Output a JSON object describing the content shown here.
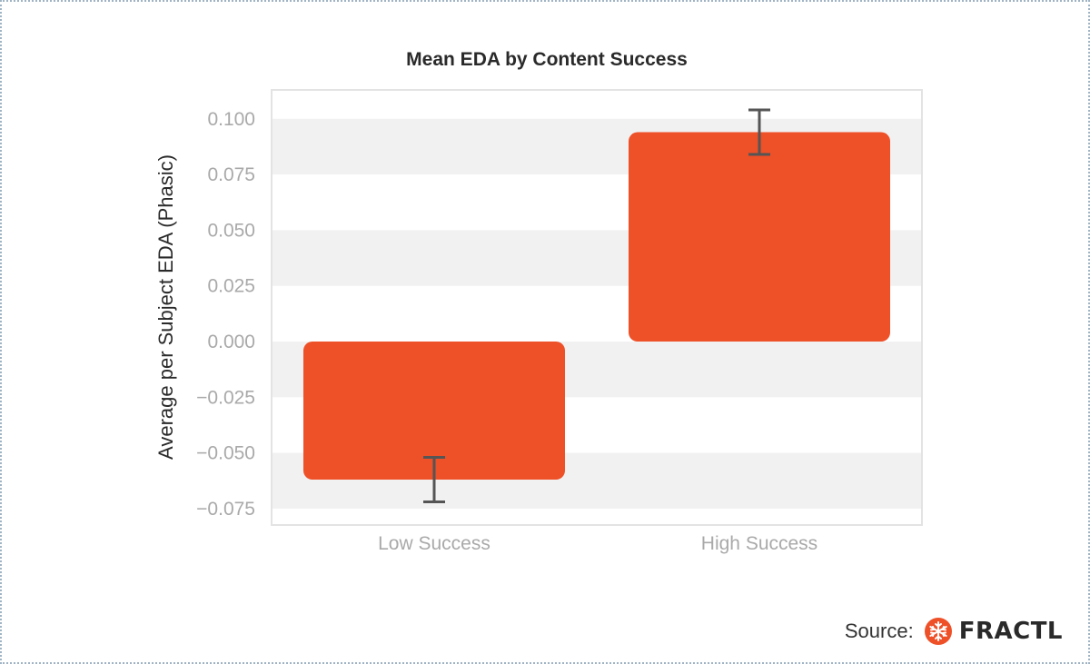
{
  "chart_data": {
    "type": "bar",
    "title": "Mean EDA by Content Success",
    "ylabel": "Average per Subject EDA (Phasic)",
    "xlabel": "",
    "categories": [
      "Low Success",
      "High Success"
    ],
    "values": [
      -0.062,
      0.094
    ],
    "error": [
      0.01,
      0.01
    ],
    "ylim": [
      -0.08,
      0.11
    ],
    "yticks": [
      0.1,
      0.075,
      0.05,
      0.025,
      0.0,
      -0.025,
      -0.05,
      -0.075
    ],
    "ytick_labels": [
      "0.100",
      "0.075",
      "0.050",
      "0.025",
      "0.000",
      "−0.025",
      "−0.050",
      "−0.075"
    ],
    "grid": "horizontal-bands",
    "bar_color": "#ee5028",
    "band_color": "#f1f1f1",
    "errorbar_color": "#555555"
  },
  "source": {
    "label": "Source:",
    "brand": "FRACTL",
    "brand_icon": "snowflake-logo-icon",
    "brand_color": "#ee5028"
  }
}
